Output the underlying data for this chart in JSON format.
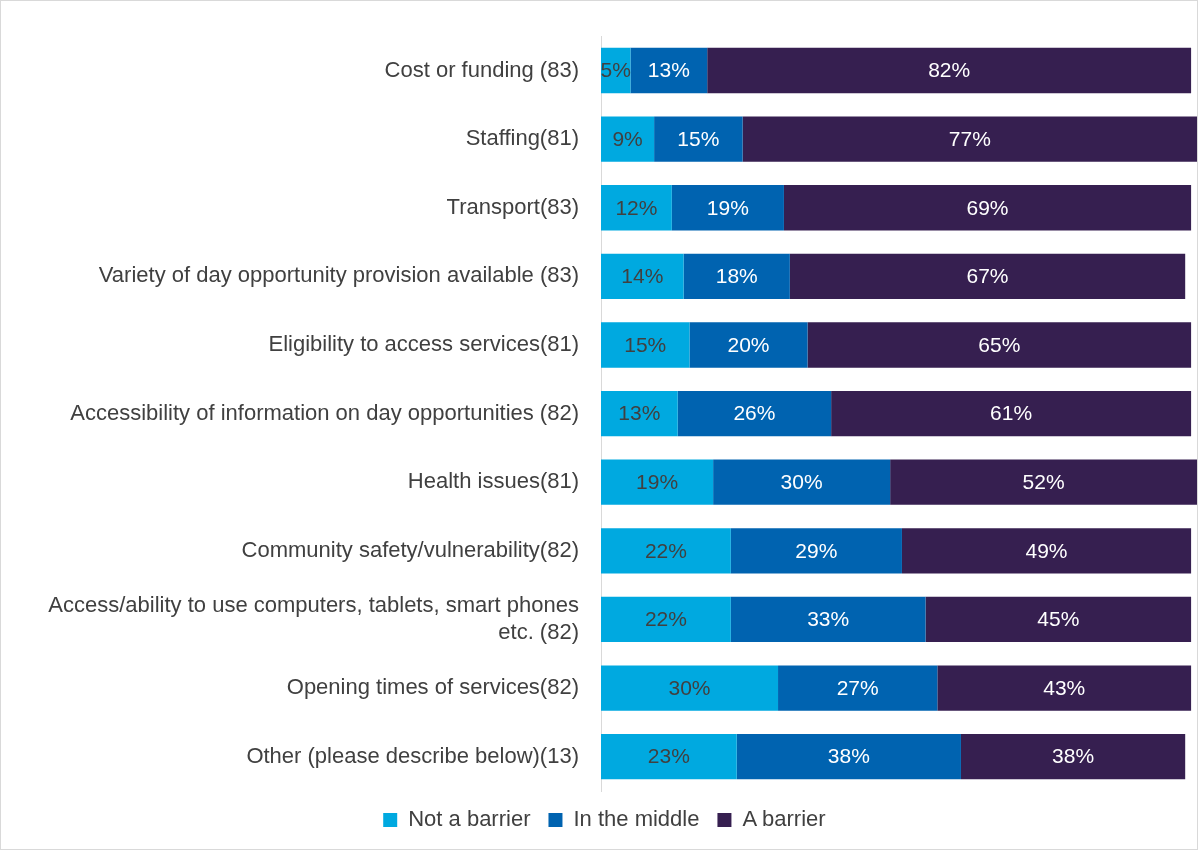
{
  "chart_data": {
    "type": "bar",
    "orientation": "horizontal",
    "stacked": true,
    "legend": "bottom",
    "grid": false,
    "tick_labels": "y",
    "xlim": [
      0,
      101
    ],
    "categories": [
      "Cost or funding (83)",
      "Staffing(81)",
      "Transport(83)",
      "Variety of day opportunity provision available (83)",
      "Eligibility to access services(81)",
      "Accessibility of information on day opportunities (82)",
      "Health issues(81)",
      "Community safety/vulnerability(82)",
      "Access/ability to use computers, tablets, smart phones etc. (82)",
      "Opening times of services(82)",
      "Other (please describe below)(13)"
    ],
    "series": [
      {
        "name": "Not a barrier",
        "color": "#00a9e0",
        "values": [
          5,
          9,
          12,
          14,
          15,
          13,
          19,
          22,
          22,
          30,
          23
        ],
        "value_labels": [
          "5%",
          "9%",
          "12%",
          "14%",
          "15%",
          "13%",
          "19%",
          "22%",
          "22%",
          "30%",
          "23%"
        ]
      },
      {
        "name": "In the middle",
        "color": "#0063b0",
        "values": [
          13,
          15,
          19,
          18,
          20,
          26,
          30,
          29,
          33,
          27,
          38
        ],
        "value_labels": [
          "13%",
          "15%",
          "19%",
          "18%",
          "20%",
          "26%",
          "30%",
          "29%",
          "33%",
          "27%",
          "38%"
        ]
      },
      {
        "name": "A barrier",
        "color": "#361f50",
        "values": [
          82,
          77,
          69,
          67,
          65,
          61,
          52,
          49,
          45,
          43,
          38
        ],
        "value_labels": [
          "82%",
          "77%",
          "69%",
          "67%",
          "65%",
          "61%",
          "52%",
          "49%",
          "45%",
          "43%",
          "38%"
        ]
      }
    ]
  }
}
